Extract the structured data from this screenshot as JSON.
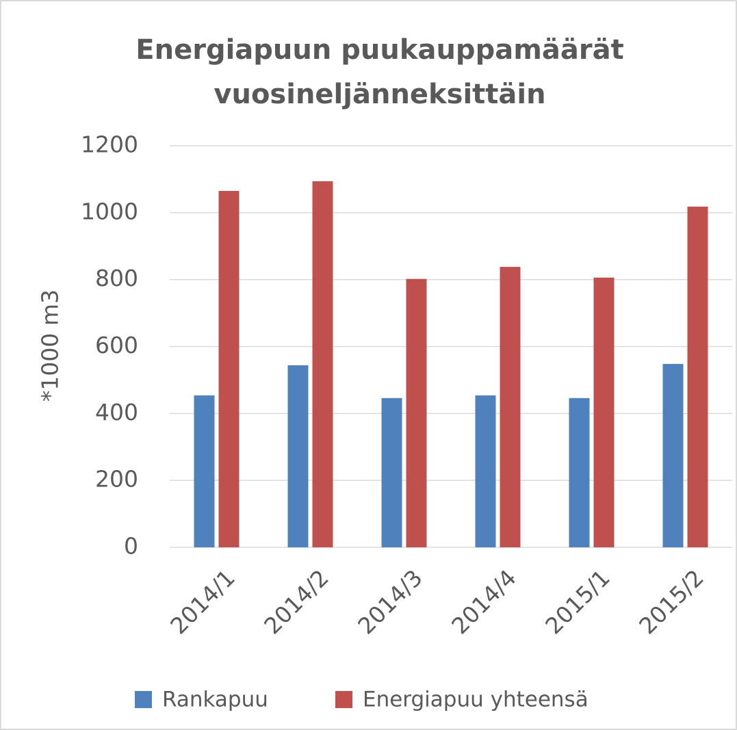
{
  "chart_data": {
    "type": "bar",
    "title": [
      "Energiapuun puukauppamäärät",
      "vuosineljänneksittäin"
    ],
    "y_label": "*1000 m3",
    "categories": [
      "2014/1",
      "2014/2",
      "2014/3",
      "2014/4",
      "2015/1",
      "2015/2"
    ],
    "series": [
      {
        "name": "Rankapuu",
        "color": "#4f81bd",
        "values": [
          454,
          544,
          446,
          454,
          446,
          548
        ]
      },
      {
        "name": "Energiapuu yhteensä",
        "color": "#c0504d",
        "values": [
          1065,
          1094,
          802,
          838,
          806,
          1018
        ]
      }
    ],
    "ylim": [
      0,
      1200
    ],
    "yticks": [
      0,
      200,
      400,
      600,
      800,
      1000,
      1200
    ],
    "grid": true,
    "legend": "bottom"
  }
}
